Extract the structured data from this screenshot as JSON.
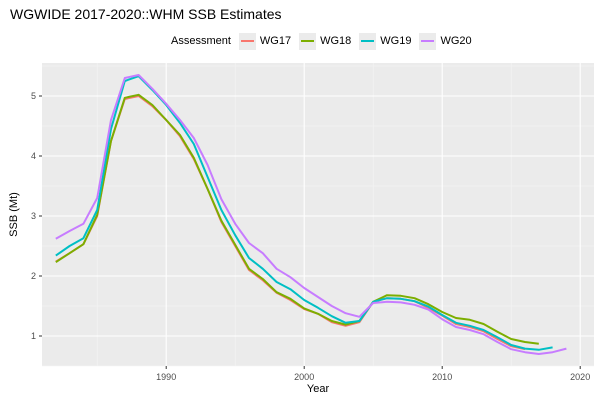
{
  "title": "WGWIDE 2017-2020::WHM SSB Estimates",
  "legend": {
    "title": "Assessment",
    "placement": "top"
  },
  "chart_data": {
    "type": "line",
    "title": "WGWIDE 2017-2020::WHM SSB Estimates",
    "xlabel": "Year",
    "ylabel": "SSB (Mt)",
    "xlim": [
      1981,
      2021
    ],
    "ylim": [
      0.5,
      5.55
    ],
    "xticks": [
      1990,
      2000,
      2010,
      2020
    ],
    "yticks": [
      1,
      2,
      3,
      4,
      5
    ],
    "grid": true,
    "legend_title": "Assessment",
    "legend_placement": "top",
    "series": [
      {
        "name": "WG17",
        "color": "#F8766D",
        "x": [
          1982,
          1983,
          1984,
          1985,
          1986,
          1987,
          1988,
          1989,
          1990,
          1991,
          1992,
          1993,
          1994,
          1995,
          1996,
          1997,
          1998,
          1999,
          2000,
          2001,
          2002,
          2003,
          2004,
          2005,
          2006,
          2007,
          2008,
          2009,
          2010,
          2011,
          2012,
          2013,
          2014,
          2015,
          2016
        ],
        "values": [
          2.24,
          2.38,
          2.53,
          3.0,
          4.25,
          4.95,
          5.0,
          4.83,
          4.6,
          4.33,
          3.95,
          3.45,
          2.9,
          2.5,
          2.1,
          1.93,
          1.72,
          1.6,
          1.45,
          1.37,
          1.23,
          1.17,
          1.23,
          1.57,
          1.63,
          1.62,
          1.58,
          1.47,
          1.34,
          1.2,
          1.15,
          1.08,
          0.95,
          0.83,
          0.78
        ]
      },
      {
        "name": "WG18",
        "color": "#7CAE00",
        "x": [
          1982,
          1983,
          1984,
          1985,
          1986,
          1987,
          1988,
          1989,
          1990,
          1991,
          1992,
          1993,
          1994,
          1995,
          1996,
          1997,
          1998,
          1999,
          2000,
          2001,
          2002,
          2003,
          2004,
          2005,
          2006,
          2007,
          2008,
          2009,
          2010,
          2011,
          2012,
          2013,
          2014,
          2015,
          2016,
          2017
        ],
        "values": [
          2.23,
          2.38,
          2.53,
          3.02,
          4.25,
          4.97,
          5.02,
          4.85,
          4.6,
          4.35,
          3.97,
          3.45,
          2.92,
          2.52,
          2.12,
          1.95,
          1.73,
          1.62,
          1.46,
          1.37,
          1.25,
          1.19,
          1.25,
          1.57,
          1.68,
          1.67,
          1.63,
          1.53,
          1.4,
          1.3,
          1.27,
          1.2,
          1.07,
          0.95,
          0.9,
          0.87
        ]
      },
      {
        "name": "WG19",
        "color": "#00BFC4",
        "x": [
          1982,
          1983,
          1984,
          1985,
          1986,
          1987,
          1988,
          1989,
          1990,
          1991,
          1992,
          1993,
          1994,
          1995,
          1996,
          1997,
          1998,
          1999,
          2000,
          2001,
          2002,
          2003,
          2004,
          2005,
          2006,
          2007,
          2008,
          2009,
          2010,
          2011,
          2012,
          2013,
          2014,
          2015,
          2016,
          2017,
          2018
        ],
        "values": [
          2.34,
          2.5,
          2.63,
          3.1,
          4.45,
          5.25,
          5.33,
          5.1,
          4.85,
          4.55,
          4.2,
          3.65,
          3.1,
          2.68,
          2.3,
          2.12,
          1.9,
          1.78,
          1.6,
          1.47,
          1.33,
          1.22,
          1.25,
          1.57,
          1.63,
          1.62,
          1.58,
          1.49,
          1.35,
          1.22,
          1.17,
          1.1,
          0.98,
          0.85,
          0.79,
          0.77,
          0.81
        ]
      },
      {
        "name": "WG20",
        "color": "#C77CFF",
        "x": [
          1982,
          1983,
          1984,
          1985,
          1986,
          1987,
          1988,
          1989,
          1990,
          1991,
          1992,
          1993,
          1994,
          1995,
          1996,
          1997,
          1998,
          1999,
          2000,
          2001,
          2002,
          2003,
          2004,
          2005,
          2006,
          2007,
          2008,
          2009,
          2010,
          2011,
          2012,
          2013,
          2014,
          2015,
          2016,
          2017,
          2018,
          2019
        ],
        "values": [
          2.62,
          2.75,
          2.87,
          3.3,
          4.6,
          5.3,
          5.35,
          5.12,
          4.87,
          4.6,
          4.3,
          3.85,
          3.28,
          2.87,
          2.55,
          2.38,
          2.12,
          1.98,
          1.8,
          1.65,
          1.5,
          1.38,
          1.32,
          1.55,
          1.57,
          1.56,
          1.52,
          1.44,
          1.28,
          1.15,
          1.1,
          1.03,
          0.9,
          0.78,
          0.73,
          0.7,
          0.73,
          0.79
        ]
      }
    ]
  }
}
